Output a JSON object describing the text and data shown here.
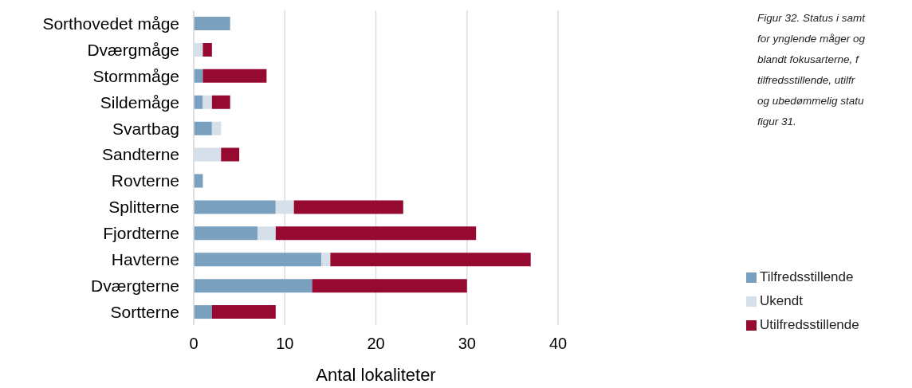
{
  "chart_data": {
    "type": "bar",
    "orientation": "horizontal",
    "stacked": true,
    "categories": [
      "Sorthovedet måge",
      "Dværgmåge",
      "Stormmåge",
      "Sildemåge",
      "Svartbag",
      "Sandterne",
      "Rovterne",
      "Splitterne",
      "Fjordterne",
      "Havterne",
      "Dværgterne",
      "Sortterne"
    ],
    "series": [
      {
        "name": "Tilfredsstillende",
        "color": "#7aa0c0",
        "values": [
          4,
          0,
          1,
          1,
          2,
          0,
          1,
          9,
          7,
          14,
          13,
          2
        ]
      },
      {
        "name": "Ukendt",
        "color": "#d5e0ea",
        "values": [
          0,
          1,
          0,
          1,
          1,
          3,
          0,
          2,
          2,
          1,
          0,
          0
        ]
      },
      {
        "name": "Utilfredsstillende",
        "color": "#960a32",
        "values": [
          0,
          1,
          7,
          2,
          0,
          2,
          0,
          12,
          22,
          22,
          17,
          7
        ]
      }
    ],
    "xlabel": "Antal lokaliteter",
    "xlim": [
      0,
      40
    ],
    "xticks": [
      0,
      10,
      20,
      30,
      40
    ],
    "grid": "x",
    "legend": "right",
    "annotations": [
      "Figur 32. Status i samt\nfor ynglende måger og\nblandt fokusarterne, f\ntilfredsstillende, utilfr\nog ubedømmelig statu\nfigur 31."
    ]
  }
}
